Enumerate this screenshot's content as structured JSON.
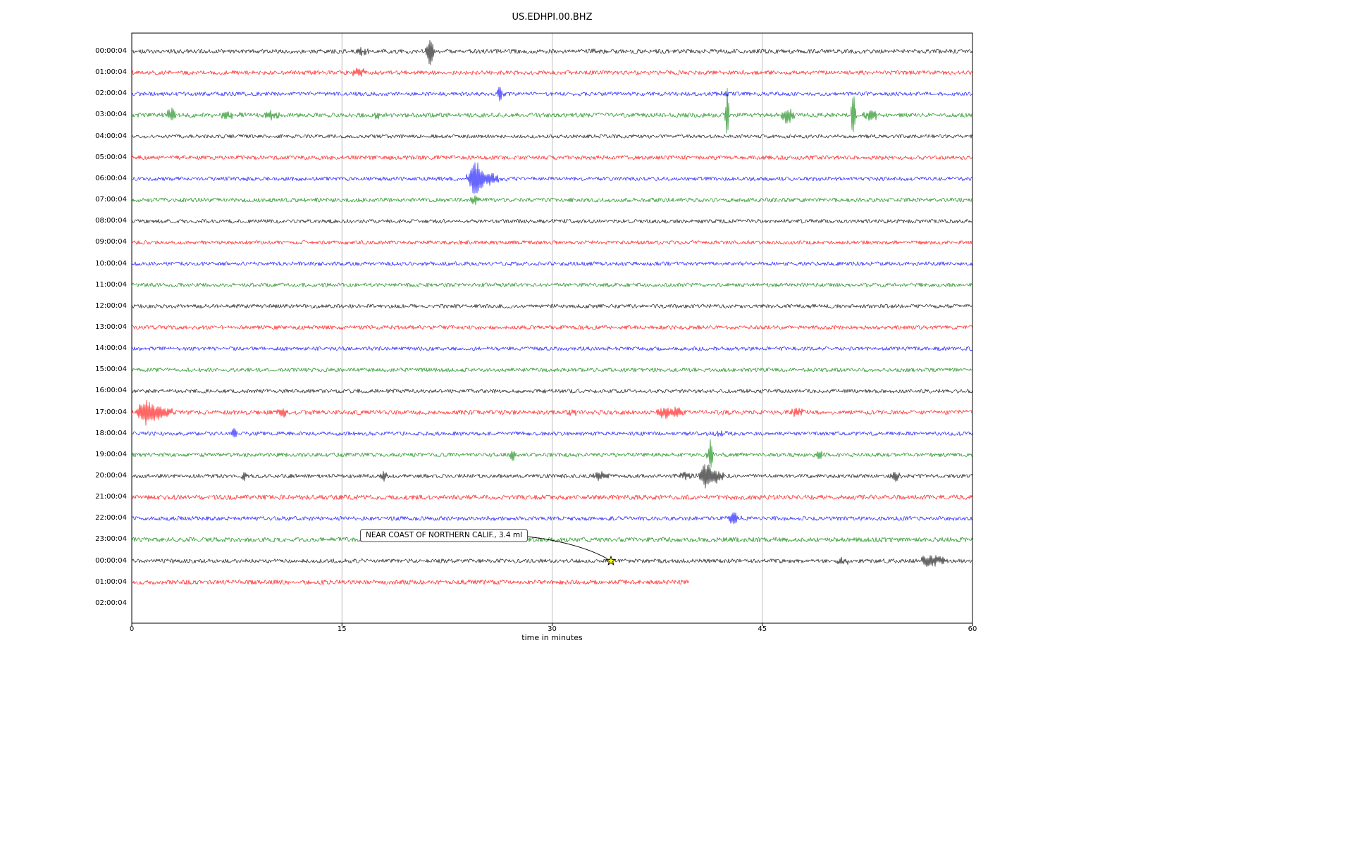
{
  "chart_data": {
    "type": "line",
    "subtype": "seismogram-helicorder",
    "title": "US.EDHPI.00.BHZ",
    "xlabel": "time in minutes",
    "x_range": [
      0,
      60
    ],
    "x_ticks": [
      0,
      15,
      30,
      45,
      60
    ],
    "grid": {
      "vertical_at_minutes": [
        15,
        30,
        45
      ],
      "color": "#b8b8b8"
    },
    "palette": [
      "#000000",
      "#ff0000",
      "#0000ff",
      "#008000"
    ],
    "axis_color": "#000000",
    "annotation": {
      "text": "NEAR COAST OF NORTHERN CALIF., 3.4 ml",
      "marker": "star-icon",
      "marker_fill": "#ffff00",
      "marker_edge": "#000000",
      "row_index": 24,
      "t_minutes": 34.2
    },
    "rows": [
      {
        "label": "00:00:04",
        "color_index": 0,
        "duration_min": 60,
        "noise": 3.0,
        "events": [
          [
            16.5,
            5,
            0.4
          ],
          [
            21.3,
            26,
            0.22
          ],
          [
            33.2,
            4,
            0.4
          ]
        ]
      },
      {
        "label": "01:00:04",
        "color_index": 1,
        "duration_min": 60,
        "noise": 3.0,
        "events": [
          [
            16.2,
            6,
            0.5
          ]
        ]
      },
      {
        "label": "02:00:04",
        "color_index": 2,
        "duration_min": 60,
        "noise": 2.8,
        "events": [
          [
            26.3,
            10,
            0.2
          ],
          [
            42.3,
            4,
            0.3
          ]
        ]
      },
      {
        "label": "03:00:04",
        "color_index": 3,
        "duration_min": 60,
        "noise": 3.2,
        "events": [
          [
            2.8,
            9,
            0.4
          ],
          [
            6.8,
            4,
            0.8
          ],
          [
            10.0,
            6,
            0.5
          ],
          [
            17.6,
            4,
            0.3
          ],
          [
            42.5,
            38,
            0.12
          ],
          [
            46.8,
            10,
            0.5
          ],
          [
            51.5,
            42,
            0.14
          ],
          [
            52.8,
            9,
            0.4
          ]
        ]
      },
      {
        "label": "04:00:04",
        "color_index": 0,
        "duration_min": 60,
        "noise": 2.6,
        "events": []
      },
      {
        "label": "05:00:04",
        "color_index": 1,
        "duration_min": 60,
        "noise": 3.0,
        "events": []
      },
      {
        "label": "06:00:04",
        "color_index": 2,
        "duration_min": 60,
        "noise": 2.8,
        "events": [
          [
            24.5,
            20,
            0.4
          ],
          [
            25.2,
            10,
            1.0
          ]
        ]
      },
      {
        "label": "07:00:04",
        "color_index": 3,
        "duration_min": 60,
        "noise": 3.0,
        "events": [
          [
            24.4,
            7,
            0.3
          ]
        ]
      },
      {
        "label": "08:00:04",
        "color_index": 0,
        "duration_min": 60,
        "noise": 2.8,
        "events": []
      },
      {
        "label": "09:00:04",
        "color_index": 1,
        "duration_min": 60,
        "noise": 2.8,
        "events": []
      },
      {
        "label": "10:00:04",
        "color_index": 2,
        "duration_min": 60,
        "noise": 2.8,
        "events": []
      },
      {
        "label": "11:00:04",
        "color_index": 3,
        "duration_min": 60,
        "noise": 2.8,
        "events": []
      },
      {
        "label": "12:00:04",
        "color_index": 0,
        "duration_min": 60,
        "noise": 2.8,
        "events": []
      },
      {
        "label": "13:00:04",
        "color_index": 1,
        "duration_min": 60,
        "noise": 2.8,
        "events": []
      },
      {
        "label": "14:00:04",
        "color_index": 2,
        "duration_min": 60,
        "noise": 2.8,
        "events": []
      },
      {
        "label": "15:00:04",
        "color_index": 3,
        "duration_min": 60,
        "noise": 2.8,
        "events": []
      },
      {
        "label": "16:00:04",
        "color_index": 0,
        "duration_min": 60,
        "noise": 2.8,
        "events": []
      },
      {
        "label": "17:00:04",
        "color_index": 1,
        "duration_min": 60,
        "noise": 3.2,
        "events": [
          [
            0.9,
            14,
            0.5
          ],
          [
            1.6,
            9,
            0.7
          ],
          [
            2.6,
            5,
            0.5
          ],
          [
            10.8,
            6,
            0.35
          ],
          [
            31.5,
            4,
            0.3
          ],
          [
            38.0,
            8,
            0.45
          ],
          [
            38.9,
            7,
            0.35
          ],
          [
            47.5,
            6,
            0.35
          ]
        ]
      },
      {
        "label": "18:00:04",
        "color_index": 2,
        "duration_min": 60,
        "noise": 2.8,
        "events": [
          [
            7.3,
            8,
            0.18
          ],
          [
            42.0,
            4,
            0.35
          ]
        ]
      },
      {
        "label": "19:00:04",
        "color_index": 3,
        "duration_min": 60,
        "noise": 2.9,
        "events": [
          [
            27.2,
            9,
            0.18
          ],
          [
            41.3,
            22,
            0.18
          ],
          [
            49.0,
            5,
            0.3
          ]
        ]
      },
      {
        "label": "20:00:04",
        "color_index": 0,
        "duration_min": 60,
        "noise": 2.9,
        "events": [
          [
            8.0,
            6,
            0.15
          ],
          [
            18.0,
            6,
            0.2
          ],
          [
            33.5,
            5,
            0.5
          ],
          [
            39.5,
            5,
            0.4
          ],
          [
            41.0,
            18,
            0.4
          ],
          [
            41.8,
            8,
            0.5
          ],
          [
            54.5,
            7,
            0.3
          ]
        ]
      },
      {
        "label": "21:00:04",
        "color_index": 1,
        "duration_min": 60,
        "noise": 3.4,
        "events": []
      },
      {
        "label": "22:00:04",
        "color_index": 2,
        "duration_min": 60,
        "noise": 3.0,
        "events": [
          [
            43.0,
            8,
            0.4
          ]
        ]
      },
      {
        "label": "23:00:04",
        "color_index": 3,
        "duration_min": 60,
        "noise": 3.4,
        "events": []
      },
      {
        "label": "00:00:04",
        "color_index": 0,
        "duration_min": 60,
        "noise": 3.0,
        "events": [
          [
            50.8,
            5,
            0.4
          ],
          [
            56.6,
            7,
            0.3
          ],
          [
            57.2,
            8,
            0.35
          ],
          [
            57.8,
            5,
            0.3
          ]
        ]
      },
      {
        "label": "01:00:04",
        "color_index": 1,
        "duration_min": 39.8,
        "noise": 3.2,
        "events": []
      },
      {
        "label": "02:00:04",
        "color_index": 3,
        "duration_min": 0,
        "noise": 0,
        "events": []
      }
    ]
  }
}
